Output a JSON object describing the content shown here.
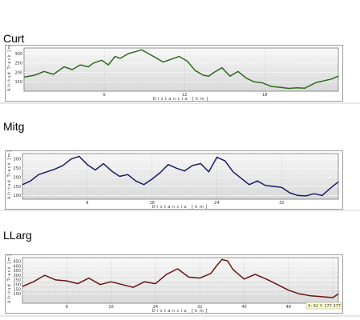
{
  "routes": [
    {
      "title": "Curt",
      "chart_data": {
        "type": "line",
        "ylabel": "Altitud Track [m]",
        "xlabel": "Distancia [km]",
        "xlim": [
          0,
          23.5
        ],
        "ylim": [
          100,
          330
        ],
        "yticks": [
          150,
          200,
          250,
          300
        ],
        "xticks": [
          6,
          12,
          18
        ],
        "grid": true,
        "color": "#2e6b1e",
        "series": [
          {
            "x": [
              0,
              0.8,
              1.5,
              2.2,
              3,
              3.6,
              4.2,
              4.8,
              5.2,
              5.8,
              6.3,
              6.8,
              7.2,
              7.8,
              8.3,
              8.8,
              9.3,
              9.8,
              10.4,
              11,
              11.6,
              12.2,
              12.8,
              13.4,
              13.8,
              14.2,
              14.8,
              15.4,
              16,
              16.6,
              17.2,
              17.8,
              18.5,
              19.2,
              19.8,
              20.4,
              21,
              21.8,
              22.4,
              23,
              23.5
            ],
            "y": [
              175,
              185,
              205,
              190,
              230,
              215,
              240,
              230,
              250,
              265,
              240,
              285,
              275,
              300,
              310,
              320,
              300,
              280,
              255,
              270,
              285,
              260,
              210,
              185,
              180,
              200,
              225,
              180,
              205,
              170,
              150,
              145,
              125,
              120,
              115,
              118,
              116,
              145,
              155,
              165,
              180
            ]
          }
        ]
      }
    },
    {
      "title": "Mitg",
      "chart_data": {
        "type": "line",
        "ylabel": "Altitud Track [m]",
        "xlabel": "Distancia [km]",
        "xlim": [
          0,
          39
        ],
        "ylim": [
          80,
          330
        ],
        "yticks": [
          100,
          150,
          200,
          250,
          300
        ],
        "xticks": [
          8,
          16,
          24,
          32
        ],
        "grid": true,
        "color": "#1a1a66",
        "series": [
          {
            "x": [
              0,
              1,
              2,
              3,
              4,
              5,
              6,
              7,
              8,
              9,
              10,
              11,
              12,
              13,
              14,
              15,
              16,
              17,
              18,
              19,
              20,
              21,
              22,
              23,
              24,
              25,
              26,
              27,
              28,
              29,
              30,
              31,
              32,
              33,
              34,
              35,
              36,
              37,
              38,
              39
            ],
            "y": [
              160,
              180,
              215,
              230,
              245,
              265,
              300,
              315,
              270,
              240,
              275,
              235,
              205,
              215,
              180,
              160,
              190,
              225,
              270,
              250,
              235,
              265,
              275,
              230,
              310,
              290,
              230,
              195,
              160,
              180,
              155,
              150,
              145,
              115,
              100,
              98,
              110,
              100,
              140,
              175
            ]
          }
        ]
      }
    },
    {
      "title": "LLarg",
      "chart_data": {
        "type": "line",
        "ylabel": "Altitud Track [m]",
        "xlabel": "Distancia [km]",
        "xlim": [
          0,
          57
        ],
        "ylim": [
          0,
          490
        ],
        "yticks": [
          100,
          150,
          200,
          250,
          300,
          350,
          400,
          450
        ],
        "xticks": [
          8,
          16,
          24,
          32,
          40,
          48,
          56
        ],
        "grid": true,
        "color": "#6b1414",
        "series": [
          {
            "x": [
              0,
              2,
              4,
              6,
              8,
              10,
              12,
              14,
              16,
              18,
              20,
              22,
              24,
              26,
              28,
              30,
              32,
              34,
              35,
              36,
              37,
              38,
              40,
              42,
              44,
              46,
              48,
              50,
              52,
              54,
              56,
              57
            ],
            "y": [
              180,
              230,
              300,
              250,
              240,
              210,
              270,
              200,
              230,
              200,
              170,
              230,
              210,
              310,
              370,
              280,
              270,
              320,
              400,
              470,
              455,
              360,
              260,
              310,
              260,
              200,
              140,
              100,
              80,
              70,
              60,
              100
            ]
          }
        ]
      },
      "cursor_readout": "X: 62  Y: 177.377"
    }
  ]
}
